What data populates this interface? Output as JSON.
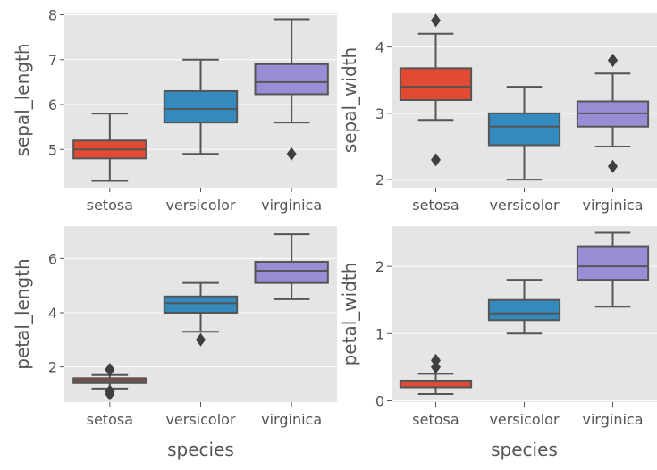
{
  "chart_data": [
    {
      "type": "box",
      "xlabel": "",
      "ylabel": "sepal_length",
      "categories": [
        "setosa",
        "versicolor",
        "virginica"
      ],
      "ylim": [
        4.15,
        8.05
      ],
      "yticks": [
        5,
        6,
        7,
        8
      ],
      "grid": true,
      "boxes": [
        {
          "q1": 4.8,
          "median": 5.0,
          "q3": 5.2,
          "whisker_low": 4.3,
          "whisker_high": 5.8,
          "outliers": [],
          "color": "#e24a33"
        },
        {
          "q1": 5.6,
          "median": 5.9,
          "q3": 6.3,
          "whisker_low": 4.9,
          "whisker_high": 7.0,
          "outliers": [],
          "color": "#348abd"
        },
        {
          "q1": 6.23,
          "median": 6.5,
          "q3": 6.9,
          "whisker_low": 5.6,
          "whisker_high": 7.9,
          "outliers": [
            4.9
          ],
          "color": "#988ed5"
        }
      ]
    },
    {
      "type": "box",
      "xlabel": "",
      "ylabel": "sepal_width",
      "categories": [
        "setosa",
        "versicolor",
        "virginica"
      ],
      "ylim": [
        1.88,
        4.52
      ],
      "yticks": [
        2,
        3,
        4
      ],
      "grid": true,
      "boxes": [
        {
          "q1": 3.2,
          "median": 3.4,
          "q3": 3.68,
          "whisker_low": 2.9,
          "whisker_high": 4.2,
          "outliers": [
            2.3,
            4.4
          ],
          "color": "#e24a33"
        },
        {
          "q1": 2.52,
          "median": 2.8,
          "q3": 3.0,
          "whisker_low": 2.0,
          "whisker_high": 3.4,
          "outliers": [],
          "color": "#348abd"
        },
        {
          "q1": 2.8,
          "median": 3.0,
          "q3": 3.18,
          "whisker_low": 2.5,
          "whisker_high": 3.6,
          "outliers": [
            2.2,
            3.8,
            3.8
          ],
          "color": "#988ed5"
        }
      ]
    },
    {
      "type": "box",
      "xlabel": "species",
      "ylabel": "petal_length",
      "categories": [
        "setosa",
        "versicolor",
        "virginica"
      ],
      "ylim": [
        0.7,
        7.2
      ],
      "yticks": [
        2,
        4,
        6
      ],
      "grid": true,
      "boxes": [
        {
          "q1": 1.4,
          "median": 1.5,
          "q3": 1.58,
          "whisker_low": 1.2,
          "whisker_high": 1.7,
          "outliers": [
            1.0,
            1.1,
            1.9,
            1.9
          ],
          "color": "#e24a33"
        },
        {
          "q1": 4.0,
          "median": 4.35,
          "q3": 4.6,
          "whisker_low": 3.3,
          "whisker_high": 5.1,
          "outliers": [
            3.0
          ],
          "color": "#348abd"
        },
        {
          "q1": 5.1,
          "median": 5.55,
          "q3": 5.88,
          "whisker_low": 4.5,
          "whisker_high": 6.9,
          "outliers": [],
          "color": "#988ed5"
        }
      ]
    },
    {
      "type": "box",
      "xlabel": "species",
      "ylabel": "petal_width",
      "categories": [
        "setosa",
        "versicolor",
        "virginica"
      ],
      "ylim": [
        -0.02,
        2.6
      ],
      "yticks": [
        0,
        1,
        2
      ],
      "grid": true,
      "boxes": [
        {
          "q1": 0.2,
          "median": 0.2,
          "q3": 0.3,
          "whisker_low": 0.1,
          "whisker_high": 0.4,
          "outliers": [
            0.5,
            0.6
          ],
          "color": "#e24a33"
        },
        {
          "q1": 1.2,
          "median": 1.3,
          "q3": 1.5,
          "whisker_low": 1.0,
          "whisker_high": 1.8,
          "outliers": [],
          "color": "#348abd"
        },
        {
          "q1": 1.8,
          "median": 2.0,
          "q3": 2.3,
          "whisker_low": 1.4,
          "whisker_high": 2.5,
          "outliers": [],
          "color": "#988ed5"
        }
      ]
    }
  ]
}
